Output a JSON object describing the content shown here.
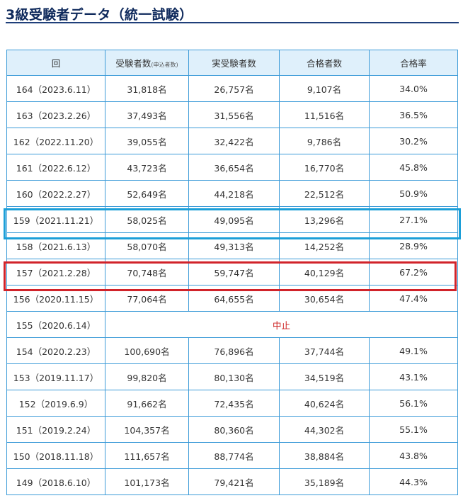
{
  "page": {
    "title": "3級受験者データ（統一試験）"
  },
  "table": {
    "headers": {
      "round": "回",
      "applicants": "受験者数",
      "applicants_note": "(申込者数)",
      "actual": "実受験者数",
      "passed": "合格者数",
      "rate": "合格率"
    },
    "rows": [
      {
        "round": "164（2023.6.11）",
        "applicants": "31,818名",
        "actual": "26,757名",
        "passed": "9,107名",
        "rate": "34.0%"
      },
      {
        "round": "163（2023.2.26）",
        "applicants": "37,493名",
        "actual": "31,556名",
        "passed": "11,516名",
        "rate": "36.5%"
      },
      {
        "round": "162（2022.11.20）",
        "applicants": "39,055名",
        "actual": "32,422名",
        "passed": "9,786名",
        "rate": "30.2%"
      },
      {
        "round": "161（2022.6.12）",
        "applicants": "43,723名",
        "actual": "36,654名",
        "passed": "16,770名",
        "rate": "45.8%"
      },
      {
        "round": "160（2022.2.27）",
        "applicants": "52,649名",
        "actual": "44,218名",
        "passed": "22,512名",
        "rate": "50.9%"
      },
      {
        "round": "159（2021.11.21）",
        "applicants": "58,025名",
        "actual": "49,095名",
        "passed": "13,296名",
        "rate": "27.1%"
      },
      {
        "round": "158（2021.6.13）",
        "applicants": "58,070名",
        "actual": "49,313名",
        "passed": "14,252名",
        "rate": "28.9%"
      },
      {
        "round": "157（2021.2.28）",
        "applicants": "70,748名",
        "actual": "59,747名",
        "passed": "40,129名",
        "rate": "67.2%"
      },
      {
        "round": "156（2020.11.15）",
        "applicants": "77,064名",
        "actual": "64,655名",
        "passed": "30,654名",
        "rate": "47.4%"
      },
      {
        "round": "155（2020.6.14）",
        "cancelled": "中止"
      },
      {
        "round": "154（2020.2.23）",
        "applicants": "100,690名",
        "actual": "76,896名",
        "passed": "37,744名",
        "rate": "49.1%"
      },
      {
        "round": "153（2019.11.17）",
        "applicants": "99,820名",
        "actual": "80,130名",
        "passed": "34,519名",
        "rate": "43.1%"
      },
      {
        "round": "152（2019.6.9）",
        "applicants": "91,662名",
        "actual": "72,435名",
        "passed": "40,624名",
        "rate": "56.1%"
      },
      {
        "round": "151（2019.2.24）",
        "applicants": "104,357名",
        "actual": "80,360名",
        "passed": "44,302名",
        "rate": "55.1%"
      },
      {
        "round": "150（2018.11.18）",
        "applicants": "111,657名",
        "actual": "88,774名",
        "passed": "38,884名",
        "rate": "43.8%"
      },
      {
        "round": "149（2018.6.10）",
        "applicants": "101,173名",
        "actual": "79,421名",
        "passed": "35,189名",
        "rate": "44.3%"
      }
    ]
  },
  "highlights": {
    "blue_color": "#1c9fd8",
    "red_color": "#d1232a"
  }
}
